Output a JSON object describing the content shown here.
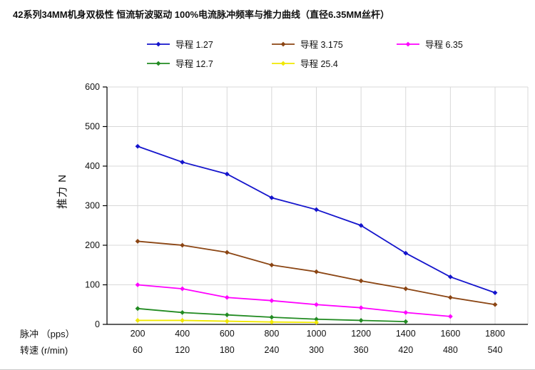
{
  "chart_data": {
    "type": "line",
    "title": "42系列34MM机身双极性 恒流斩波驱动 100%电流脉冲频率与推力曲线（直径6.35MM丝杆）",
    "ylabel": "推力 N",
    "ylim": [
      0,
      600
    ],
    "yticks": [
      0,
      100,
      200,
      300,
      400,
      500,
      600
    ],
    "x_label_pps": "脉冲 （pps）",
    "x_label_rpm": "转速 (r/min)",
    "x_pps": [
      200,
      400,
      600,
      800,
      1000,
      1200,
      1400,
      1600,
      1800
    ],
    "x_rpm": [
      60,
      120,
      180,
      240,
      300,
      360,
      420,
      480,
      540
    ],
    "grid": true,
    "legend_position": "top",
    "axis_color": "#000000",
    "grid_color": "#d8d8d8",
    "series": [
      {
        "name": "导程 1.27",
        "color": "#1414cc",
        "values": [
          450,
          410,
          380,
          320,
          290,
          250,
          180,
          120,
          80
        ]
      },
      {
        "name": "导程 3.175",
        "color": "#8b4513",
        "values": [
          210,
          200,
          182,
          150,
          133,
          110,
          90,
          68,
          50
        ]
      },
      {
        "name": "导程 6.35",
        "color": "#ff00ff",
        "values": [
          100,
          90,
          68,
          60,
          50,
          42,
          30,
          20
        ]
      },
      {
        "name": "导程 12.7",
        "color": "#228b22",
        "values": [
          40,
          30,
          24,
          18,
          13,
          10,
          7
        ]
      },
      {
        "name": "导程 25.4",
        "color": "#f0e800",
        "values": [
          10,
          10,
          8,
          6,
          5
        ]
      }
    ]
  }
}
